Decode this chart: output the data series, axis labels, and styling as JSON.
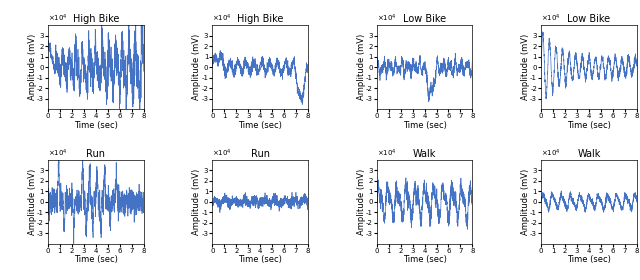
{
  "titles": [
    [
      "High Bike",
      "High Bike",
      "Low Bike",
      "Low Bike"
    ],
    [
      "Run",
      "Run",
      "Walk",
      "Walk"
    ]
  ],
  "ylabel": "Amplitude (mV)",
  "xlabel": "Time (sec)",
  "ylim": [
    -40000.0,
    40000.0
  ],
  "xlim": [
    0,
    8
  ],
  "yticks": [
    -30000.0,
    -20000.0,
    -10000.0,
    0,
    10000.0,
    20000.0,
    30000.0
  ],
  "ytick_labels": [
    "-3",
    "-2",
    "-1",
    "0",
    "1",
    "2",
    "3"
  ],
  "xticks": [
    0,
    1,
    2,
    3,
    4,
    5,
    6,
    7,
    8
  ],
  "line_color": "#4472c4",
  "background_color": "#ffffff",
  "fig_background": "#ffffff"
}
